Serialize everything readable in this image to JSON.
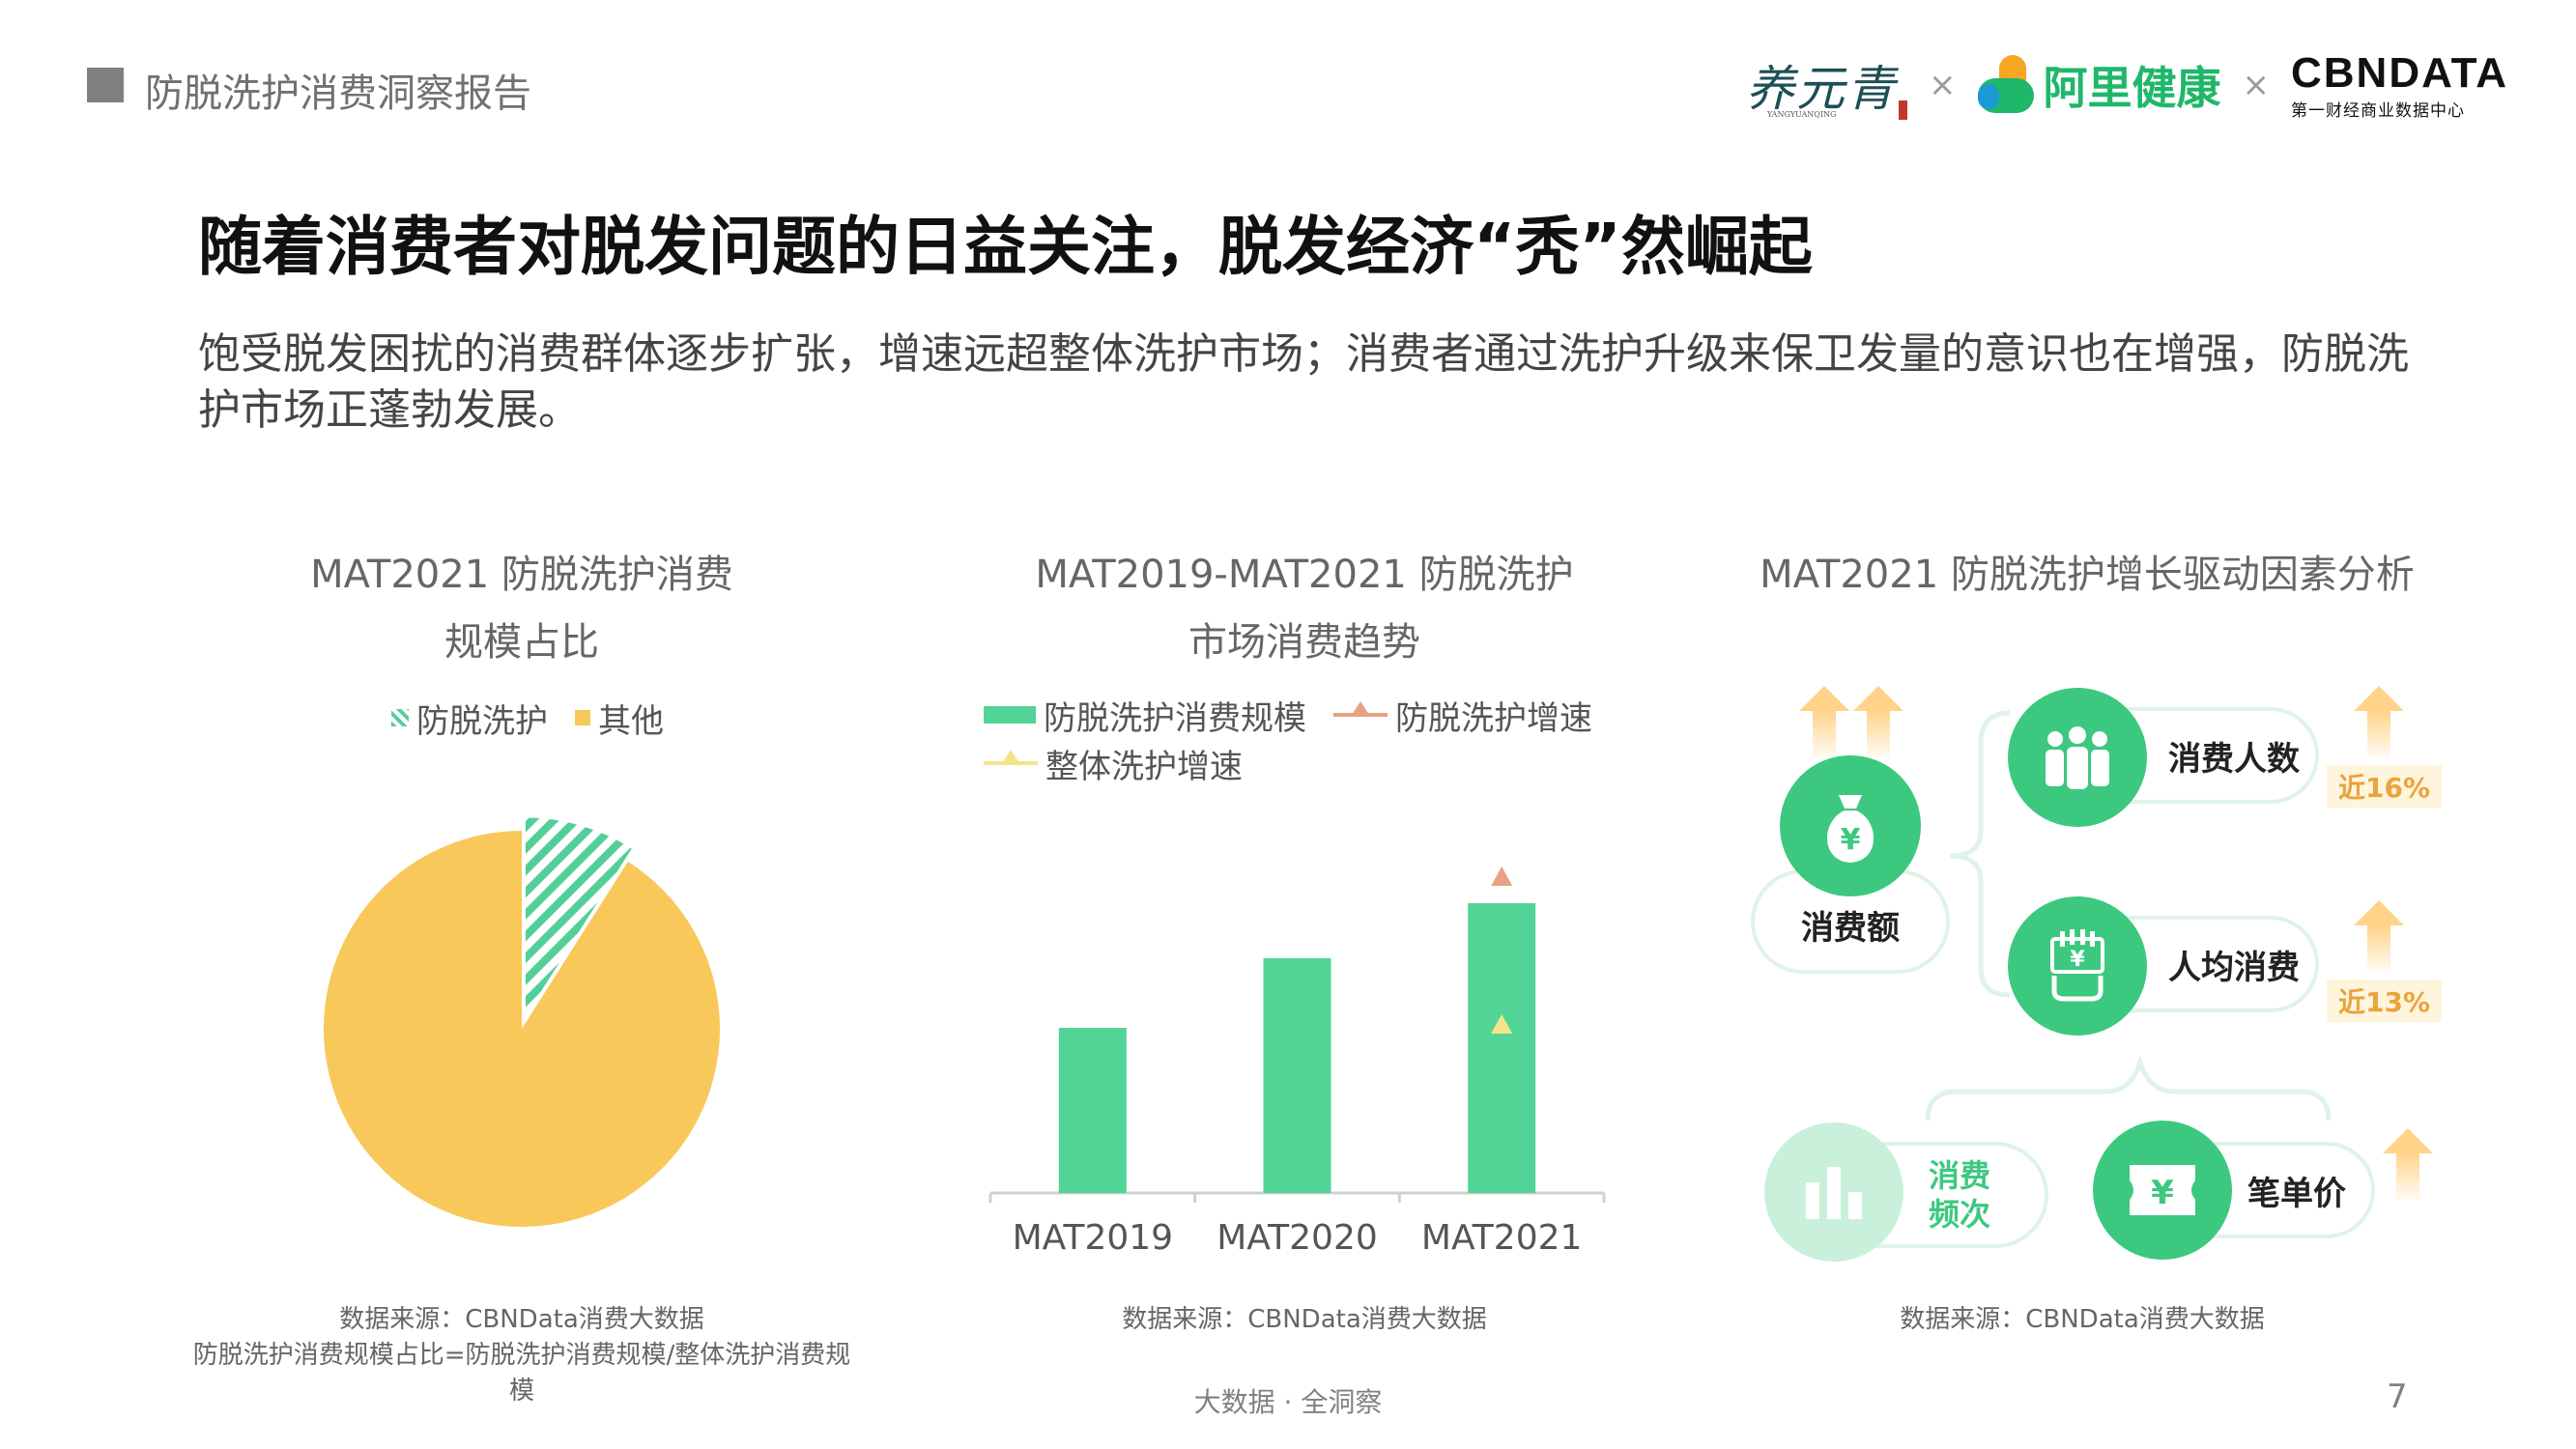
{
  "header": {
    "title": "防脱洗护消费洞察报告",
    "logos": {
      "yangyuanqing": "养元青",
      "yangyuanqing_sub": "YANGYUANQING",
      "separator": "×",
      "alihealth": "阿里健康",
      "cbn_main": "CBNDATA",
      "cbn_sub": "第一财经商业数据中心"
    }
  },
  "headline": "随着消费者对脱发问题的日益关注，脱发经济“秃”然崛起",
  "intro": "饱受脱发困扰的消费群体逐步扩张，增速远超整体洗护市场；消费者通过洗护升级来保卫发量的意识也在增强，防脱洗护市场正蓬勃发展。",
  "colors": {
    "green": "#52d496",
    "yellow": "#f8c85b",
    "salmon": "#e8a184",
    "pale_yellow": "#f5e38a"
  },
  "panels": {
    "pie": {
      "title_line1": "MAT2021 防脱洗护消费",
      "title_line2": "规模占比",
      "legend": [
        "防脱洗护",
        "其他"
      ],
      "source_line1": "数据来源：CBNData消费大数据",
      "source_line2": "防脱洗护消费规模占比=防脱洗护消费规模/整体洗护消费规模"
    },
    "bar": {
      "title_line1": "MAT2019-MAT2021 防脱洗护",
      "title_line2": "市场消费趋势",
      "legend": [
        "防脱洗护消费规模",
        "防脱洗护增速",
        "整体洗护增速"
      ],
      "source": "数据来源：CBNData消费大数据"
    },
    "drivers": {
      "title": "MAT2021 防脱洗护增长驱动因素分析",
      "root": "消费额",
      "root_icon": "money-bag-icon",
      "branch1": "消费人数",
      "branch1_icon": "people-icon",
      "branch1_growth": "近16%",
      "branch2": "人均消费",
      "branch2_icon": "hand-money-icon",
      "branch2_growth": "近13%",
      "leaf1_line1": "消费",
      "leaf1_line2": "频次",
      "leaf1_icon": "bar-chart-icon",
      "leaf2": "笔单价",
      "leaf2_icon": "ticket-yen-icon",
      "yen": "¥",
      "source": "数据来源：CBNData消费大数据"
    }
  },
  "chart_data": [
    {
      "type": "pie",
      "series_names": [
        "防脱洗护",
        "其他"
      ],
      "values": [
        0.09,
        0.91
      ],
      "exploded": "防脱洗护",
      "legend_position": "top"
    },
    {
      "type": "bar",
      "categories": [
        "MAT2019",
        "MAT2020",
        "MAT2021"
      ],
      "bar_series": {
        "name": "防脱洗护消费规模",
        "values": [
          0.57,
          0.81,
          1.0
        ]
      },
      "marker_series": [
        {
          "name": "防脱洗护增速",
          "values": [
            null,
            null,
            1.09
          ],
          "marker": "triangle",
          "color": "#e8a184"
        },
        {
          "name": "整体洗护增速",
          "values": [
            null,
            null,
            0.58
          ],
          "marker": "triangle",
          "color": "#f5e38a"
        }
      ],
      "y_axis_labels_shown": false,
      "grid": false,
      "legend_position": "top"
    }
  ],
  "footer": {
    "text": "大数据 · 全洞察",
    "page": "7"
  }
}
